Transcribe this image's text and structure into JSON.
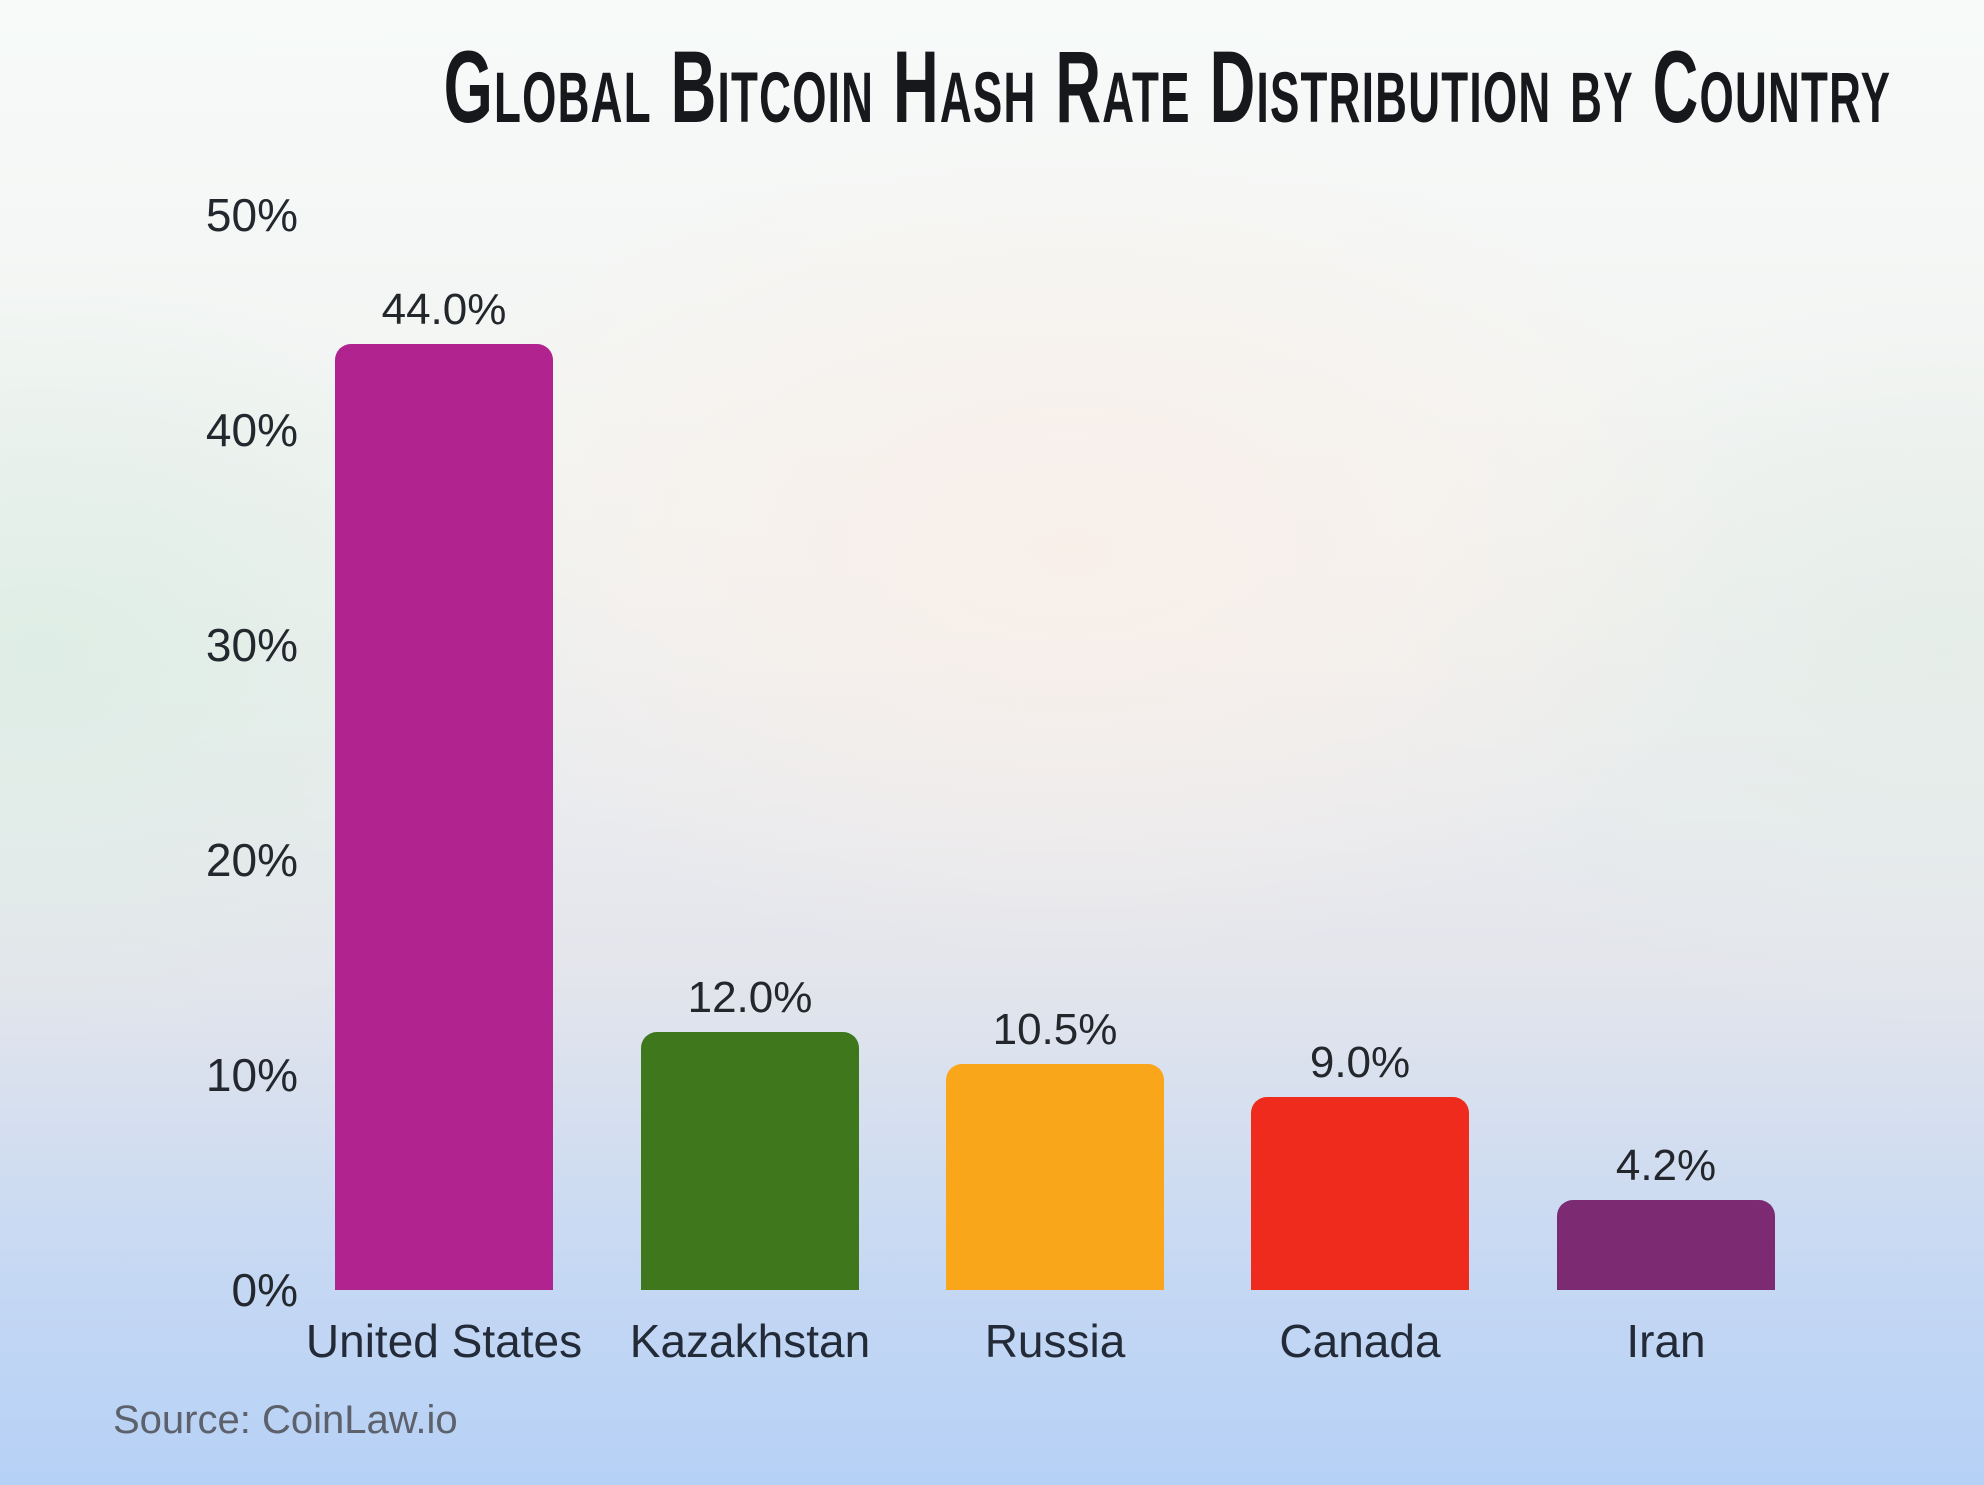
{
  "title": "Global Bitcoin Hash Rate Distribution by Country",
  "source_label": "Source: CoinLaw.io",
  "chart_data": {
    "type": "bar",
    "title": "Global Bitcoin Hash Rate Distribution by Country",
    "categories": [
      "United States",
      "Kazakhstan",
      "Russia",
      "Canada",
      "Iran"
    ],
    "values": [
      44.0,
      12.0,
      10.5,
      9.0,
      4.2
    ],
    "value_labels": [
      "44.0%",
      "12.0%",
      "10.5%",
      "9.0%",
      "4.2%"
    ],
    "bar_colors": [
      "#b1238f",
      "#3e771c",
      "#faa61a",
      "#ee2b1c",
      "#7c2b72"
    ],
    "xlabel": "",
    "ylabel": "",
    "ylim": [
      0,
      50
    ],
    "ytick_values": [
      0,
      10,
      20,
      30,
      40,
      50
    ],
    "ytick_labels": [
      "0%",
      "10%",
      "20%",
      "30%",
      "40%",
      "50%"
    ],
    "grid": false,
    "legend": false,
    "source": "Source: CoinLaw.io"
  },
  "colors": {
    "title_text": "#16181c",
    "axis_tick_text": "#23272e",
    "category_text": "#232a38",
    "value_text": "#23262b",
    "source_text": "#5c616b",
    "background_top": "#f7faf9",
    "background_pink_glow": "#f9efe9",
    "background_mint_glow": "#ddeee5",
    "background_bottom_blue": "#b6d1f6"
  }
}
